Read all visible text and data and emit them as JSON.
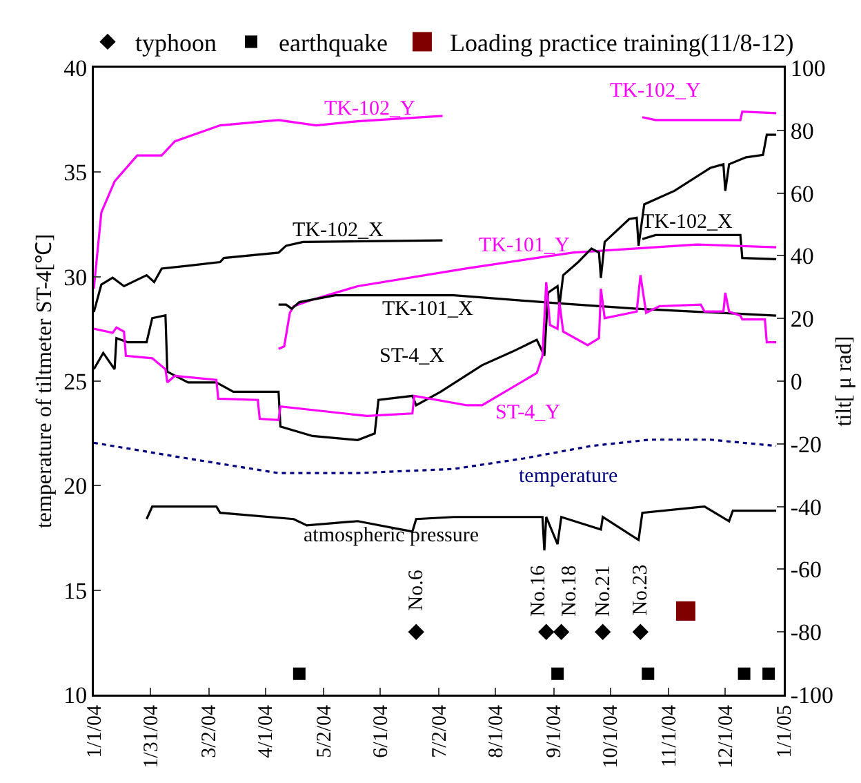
{
  "chart_data": {
    "type": "line",
    "ylabel": "temperature of tiltmeter ST-4[℃]",
    "y2label": "tilt[ μ rad]",
    "xlim": [
      "2004-01-01",
      "2005-01-01"
    ],
    "xticks": [
      {
        "value": "2004-01-01",
        "label": "1/1/04"
      },
      {
        "value": "2004-01-31",
        "label": "1/31/04"
      },
      {
        "value": "2004-03-02",
        "label": "3/2/04"
      },
      {
        "value": "2004-04-01",
        "label": "4/1/04"
      },
      {
        "value": "2004-05-02",
        "label": "5/2/04"
      },
      {
        "value": "2004-06-01",
        "label": "6/1/04"
      },
      {
        "value": "2004-07-02",
        "label": "7/2/04"
      },
      {
        "value": "2004-08-01",
        "label": "8/1/04"
      },
      {
        "value": "2004-09-01",
        "label": "9/1/04"
      },
      {
        "value": "2004-10-01",
        "label": "10/1/04"
      },
      {
        "value": "2004-11-01",
        "label": "11/1/04"
      },
      {
        "value": "2004-12-01",
        "label": "12/1/04"
      },
      {
        "value": "2005-01-01",
        "label": "1/1/05"
      }
    ],
    "ylim": [
      10,
      40
    ],
    "yticks": [
      10,
      15,
      20,
      25,
      30,
      35,
      40
    ],
    "y2lim": [
      -100,
      100
    ],
    "y2ticks": [
      -100,
      -80,
      -60,
      -40,
      -20,
      0,
      20,
      40,
      60,
      80,
      100
    ],
    "grid": false,
    "legend": "top",
    "series": [
      {
        "name": "TK-102_Y",
        "color": "#ff00ff",
        "axis": "y2",
        "marker": "none",
        "x": [
          "2004-01-01",
          "2004-01-05",
          "2004-01-12",
          "2004-01-24",
          "2004-02-06",
          "2004-02-13",
          "2004-03-08",
          "2004-04-08",
          "2004-04-28",
          "2004-05-20",
          "2004-07-04",
          "2004-08-28",
          "2004-10-18",
          "2004-10-25",
          "2004-12-09",
          "2004-12-10",
          "2004-12-28"
        ],
        "values": [
          29.5,
          53.8,
          63.7,
          72,
          72,
          76.5,
          81.6,
          83.3,
          81.6,
          82.9,
          84.6,
          null,
          84.2,
          83.3,
          83.3,
          86,
          85.5
        ]
      },
      {
        "name": "TK-102_X",
        "color": "#000000",
        "axis": "y2",
        "marker": "none",
        "x": [
          "2004-01-01",
          "2004-01-05",
          "2004-01-11",
          "2004-01-17",
          "2004-01-29",
          "2004-02-02",
          "2004-02-06",
          "2004-02-20",
          "2004-03-08",
          "2004-03-10",
          "2004-04-08",
          "2004-04-12",
          "2004-04-21",
          "2004-07-04",
          "2004-08-28",
          "2004-10-18",
          "2004-10-25",
          "2004-12-09",
          "2004-12-10",
          "2004-12-28"
        ],
        "values": [
          22,
          30.8,
          33,
          30.3,
          33.8,
          31.6,
          35.9,
          36.8,
          38,
          39.3,
          41,
          43.2,
          44.4,
          44.9,
          null,
          45.3,
          46.6,
          46.6,
          39.3,
          38.9
        ]
      },
      {
        "name": "TK-101_Y",
        "color": "#ff00ff",
        "axis": "y2",
        "marker": "none",
        "x": [
          "2004-04-08",
          "2004-04-11",
          "2004-04-14",
          "2004-04-16",
          "2004-04-26",
          "2004-05-20",
          "2004-07-17",
          "2004-09-11",
          "2004-11-16",
          "2004-12-28"
        ],
        "values": [
          10.3,
          11.1,
          21.8,
          23.9,
          26,
          30.3,
          36,
          41,
          43.6,
          42.7
        ]
      },
      {
        "name": "TK-101_X",
        "color": "#000000",
        "axis": "y2",
        "marker": "none",
        "x": [
          "2004-04-08",
          "2004-04-12",
          "2004-04-15",
          "2004-04-19",
          "2004-05-08",
          "2004-06-13",
          "2004-07-10",
          "2004-09-04",
          "2004-10-15",
          "2004-12-28"
        ],
        "values": [
          24.4,
          24.4,
          23.1,
          25.2,
          27.4,
          27.4,
          27.4,
          24.8,
          23.1,
          20.9
        ]
      },
      {
        "name": "ST-4_X",
        "color": "#000000",
        "axis": "y2",
        "marker": "none",
        "x": [
          "2004-01-01",
          "2004-01-06",
          "2004-01-12",
          "2004-01-13",
          "2004-01-19",
          "2004-01-29",
          "2004-02-01",
          "2004-02-08",
          "2004-02-09",
          "2004-02-20",
          "2004-03-06",
          "2004-03-15",
          "2004-03-28",
          "2004-04-08",
          "2004-04-09",
          "2004-04-26",
          "2004-05-20",
          "2004-05-29",
          "2004-05-31",
          "2004-06-18",
          "2004-06-20",
          "2004-07-03",
          "2004-07-25",
          "2004-08-10",
          "2004-08-23",
          "2004-08-27",
          "2004-08-29",
          "2004-09-03",
          "2004-09-04",
          "2004-09-06",
          "2004-09-14",
          "2004-09-21",
          "2004-09-25",
          "2004-09-26",
          "2004-09-28",
          "2004-10-11",
          "2004-10-15",
          "2004-10-16",
          "2004-10-19",
          "2004-11-04",
          "2004-11-23",
          "2004-11-30",
          "2004-12-01",
          "2004-12-03",
          "2004-12-12",
          "2004-12-21",
          "2004-12-23",
          "2004-12-28"
        ],
        "values": [
          3.8,
          9,
          3.8,
          13.7,
          12.4,
          12.4,
          20.1,
          21,
          3,
          -0.4,
          -0.4,
          -3.4,
          -3.4,
          -3.4,
          -14.5,
          -17.5,
          -18.8,
          -16.7,
          -6,
          -4.7,
          -7.7,
          -3.4,
          5.1,
          9.4,
          13.2,
          8.1,
          28.2,
          30.3,
          23.9,
          33.8,
          38,
          42.3,
          41,
          32.9,
          44.4,
          51.7,
          52.1,
          43.2,
          56.4,
          60.7,
          68,
          69.2,
          60.7,
          69.2,
          71.4,
          72.2,
          78.6,
          78.6
        ]
      },
      {
        "name": "ST-4_Y",
        "color": "#ff00ff",
        "axis": "y2",
        "marker": "none",
        "x": [
          "2004-01-01",
          "2004-01-11",
          "2004-01-13",
          "2004-01-17",
          "2004-01-18",
          "2004-02-01",
          "2004-02-08",
          "2004-02-09",
          "2004-02-13",
          "2004-03-06",
          "2004-03-07",
          "2004-03-28",
          "2004-03-29",
          "2004-04-08",
          "2004-04-09",
          "2004-05-25",
          "2004-06-18",
          "2004-06-19",
          "2004-07-17",
          "2004-07-25",
          "2004-08-23",
          "2004-08-26",
          "2004-08-28",
          "2004-08-30",
          "2004-09-03",
          "2004-09-04",
          "2004-09-06",
          "2004-09-19",
          "2004-09-25",
          "2004-09-26",
          "2004-09-28",
          "2004-10-15",
          "2004-10-17",
          "2004-10-20",
          "2004-10-27",
          "2004-11-18",
          "2004-11-20",
          "2004-11-30",
          "2004-12-01",
          "2004-12-03",
          "2004-12-09",
          "2004-12-10",
          "2004-12-22",
          "2004-12-23",
          "2004-12-28"
        ],
        "values": [
          16.7,
          15.4,
          17.1,
          15.8,
          8.1,
          7.3,
          3.8,
          -0.4,
          1.7,
          0.4,
          -5.6,
          -6,
          -12,
          -12.4,
          -8.1,
          -11.1,
          -10.3,
          -4.7,
          -7.7,
          -7.7,
          2.6,
          8.1,
          31.6,
          17.9,
          16.7,
          25.2,
          15.8,
          11.5,
          13.7,
          29.5,
          20.1,
          22.2,
          33.8,
          21.8,
          23.9,
          24.4,
          22.2,
          22.2,
          28.2,
          22.2,
          20.9,
          19.7,
          19.7,
          12.4,
          12.4
        ]
      },
      {
        "name": "temperature",
        "color": "#000080",
        "line_style": "dotted",
        "marker": "none",
        "x": [
          "2004-01-01",
          "2004-02-13",
          "2004-04-08",
          "2004-05-20",
          "2004-07-10",
          "2004-08-16",
          "2004-09-21",
          "2004-10-22",
          "2004-11-23",
          "2004-12-28"
        ],
        "values": [
          22.05,
          21.4,
          20.6,
          20.6,
          20.8,
          21.3,
          21.9,
          22.2,
          22.2,
          21.9
        ]
      },
      {
        "name": "atmospheric pressure",
        "color": "#000000",
        "marker": "none",
        "x": [
          "2004-01-29",
          "2004-02-01",
          "2004-03-06",
          "2004-03-08",
          "2004-04-16",
          "2004-04-23",
          "2004-05-20",
          "2004-06-18",
          "2004-06-20",
          "2004-07-10",
          "2004-08-26",
          "2004-08-27",
          "2004-08-28",
          "2004-09-03",
          "2004-09-05",
          "2004-09-26",
          "2004-09-27",
          "2004-10-16",
          "2004-10-18",
          "2004-11-20",
          "2004-12-03",
          "2004-12-05",
          "2004-12-28"
        ],
        "values": [
          18.4,
          19,
          19,
          18.7,
          18.4,
          18.1,
          18.3,
          17.8,
          18.4,
          18.5,
          18.5,
          16.9,
          18.5,
          17.2,
          18.5,
          17.9,
          18.5,
          17.4,
          18.7,
          19,
          18.3,
          18.8,
          18.8
        ]
      },
      {
        "name": "typhoon",
        "type": "scatter",
        "color": "#000000",
        "marker": "diamond",
        "x": [
          "2004-06-20",
          "2004-08-28",
          "2004-09-05",
          "2004-09-27",
          "2004-10-17"
        ],
        "values": [
          13,
          13,
          13,
          13,
          13
        ],
        "value_labels": [
          "No.6",
          "No.16",
          "No.18",
          "No.21",
          "No.23"
        ]
      },
      {
        "name": "earthquake",
        "type": "scatter",
        "color": "#000000",
        "marker": "square",
        "x": [
          "2004-04-19",
          "2004-09-03",
          "2004-10-21",
          "2004-12-11",
          "2004-12-24"
        ],
        "values": [
          11,
          11,
          11,
          11,
          11
        ]
      },
      {
        "name": "Loading practice training(11/8-12)",
        "type": "scatter",
        "color": "#800000",
        "marker": "square",
        "x": [
          "2004-11-10"
        ],
        "values": [
          14
        ]
      }
    ]
  }
}
